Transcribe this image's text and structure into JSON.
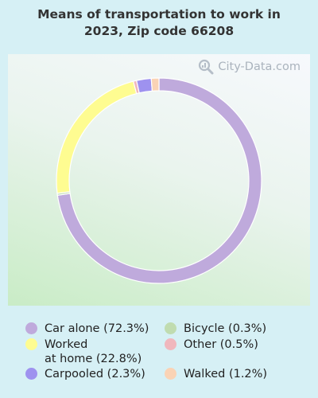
{
  "chart_data": {
    "type": "pie",
    "title": "Means of transportation to work in 2023, Zip code 66208",
    "title_lines": [
      "Means of transportation to work in",
      "2023, Zip code 66208"
    ],
    "style": "donut",
    "slices": [
      {
        "label": "Car alone",
        "value": 72.3,
        "color": "#bfaadc",
        "legend_text": "Car alone (72.3%)"
      },
      {
        "label": "Bicycle",
        "value": 0.3,
        "color": "#c0dcb0",
        "legend_text": "Bicycle (0.3%)"
      },
      {
        "label": "Worked at home",
        "value": 22.8,
        "color": "#fefc91",
        "legend_text": "Worked\nat home (22.8%)"
      },
      {
        "label": "Other",
        "value": 0.5,
        "color": "#f0b7bd",
        "legend_text": "Other (0.5%)"
      },
      {
        "label": "Carpooled",
        "value": 2.3,
        "color": "#9e92ef",
        "legend_text": "Carpooled (2.3%)"
      },
      {
        "label": "Walked",
        "value": 1.2,
        "color": "#fad3b5",
        "legend_text": "Walked (1.2%)"
      }
    ],
    "legend_placement": "bottom",
    "grid": false
  },
  "watermark": {
    "text": "City-Data.com",
    "icon": "magnifier-icon"
  }
}
